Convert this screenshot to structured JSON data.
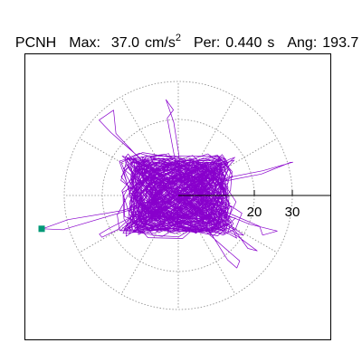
{
  "header": {
    "station": "PCNH",
    "max_label": "Max:",
    "max_value": "37.0",
    "max_unit": "cm/s",
    "max_unit_exp": "2",
    "period_label": "Per:",
    "period_value": "0.440",
    "period_unit": "s",
    "angle_label": "Ang:",
    "angle_value": "193.7"
  },
  "chart_data": {
    "type": "polar-particle-motion",
    "title": "",
    "max": 37.0,
    "max_unit": "cm/s2",
    "period_s": 0.44,
    "angle_deg": 193.7,
    "radial_ticks": [
      20,
      30
    ],
    "radial_rings": [
      10,
      20,
      30
    ],
    "spoke_angles_deg": [
      0,
      30,
      60,
      90,
      120,
      150,
      180,
      210,
      240,
      270,
      300,
      330
    ],
    "marker": {
      "angle_deg": 193.7,
      "radius": 37.0,
      "color": "#009977"
    },
    "trace_color": "#8800cc",
    "grid_color": "#888888",
    "grid_style": "dotted"
  }
}
